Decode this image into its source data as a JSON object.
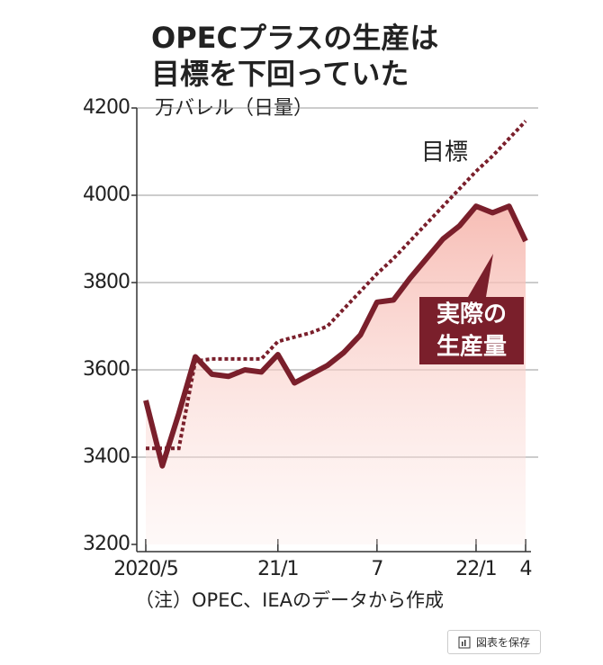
{
  "chart_data": {
    "type": "line",
    "title": [
      "OPECプラスの生産は",
      "目標を下回っていた"
    ],
    "y_label": "万バレル（日量）",
    "categories": [
      "2020/5",
      null,
      null,
      null,
      null,
      null,
      null,
      null,
      "21/1",
      null,
      null,
      null,
      null,
      null,
      "7",
      null,
      null,
      null,
      null,
      null,
      "22/1",
      null,
      null,
      "4"
    ],
    "series": [
      {
        "name": "目標",
        "color": "#7a1f2b",
        "style": "dotted",
        "values": [
          3420,
          3420,
          3420,
          3620,
          3625,
          3625,
          3625,
          3625,
          3665,
          3675,
          3685,
          3700,
          3740,
          3780,
          3820,
          3855,
          3895,
          3935,
          3975,
          4015,
          4055,
          4090,
          4130,
          4170
        ]
      },
      {
        "color": "#7a1f2b",
        "style": "solid",
        "values": [
          3530,
          3380,
          3500,
          3630,
          3590,
          3585,
          3600,
          3595,
          3635,
          3570,
          3590,
          3610,
          3640,
          3680,
          3755,
          3760,
          3810,
          3855,
          3900,
          3930,
          3975,
          3960,
          3975,
          3895
        ]
      }
    ],
    "annotation": [
      "実際の",
      "生産量"
    ],
    "ylim": [
      3200,
      4200
    ],
    "yticks": [
      3200,
      3400,
      3600,
      3800,
      4000,
      4200
    ],
    "grid": true,
    "footnote": "（注）OPEC、IEAのデータから作成"
  },
  "save_button": "図表を保存"
}
